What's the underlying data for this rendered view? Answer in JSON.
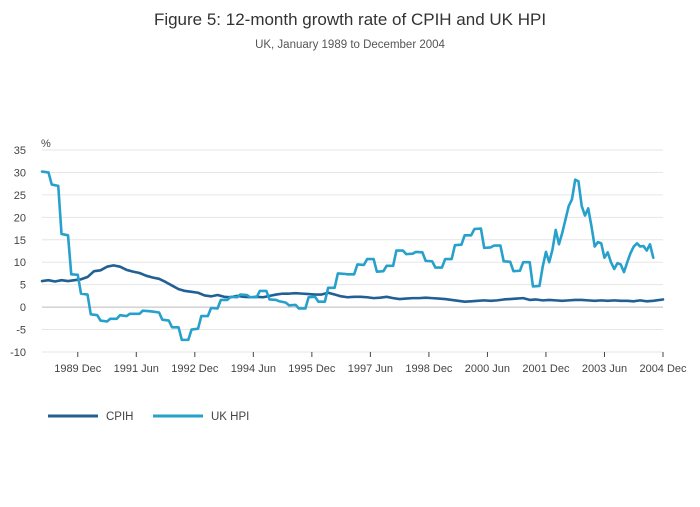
{
  "chart_data": {
    "type": "line",
    "title": "Figure 5: 12-month growth rate of CPIH and UK HPI",
    "subtitle": "UK, January 1989 to December 2004",
    "ylabel": "%",
    "xlabel": "",
    "ylim": [
      -10,
      35
    ],
    "yticks": [
      -10,
      -5,
      0,
      5,
      10,
      15,
      20,
      25,
      30,
      35
    ],
    "xlim": [
      "1989-01",
      "2004-12"
    ],
    "xticks": [
      {
        "date": "1989-12",
        "label": "1989 Dec"
      },
      {
        "date": "1991-06",
        "label": "1991 Jun"
      },
      {
        "date": "1992-12",
        "label": "1992 Dec"
      },
      {
        "date": "1994-06",
        "label": "1994 Jun"
      },
      {
        "date": "1995-12",
        "label": "1995 Dec"
      },
      {
        "date": "1997-06",
        "label": "1997 Jun"
      },
      {
        "date": "1998-12",
        "label": "1998 Dec"
      },
      {
        "date": "2000-06",
        "label": "2000 Jun"
      },
      {
        "date": "2001-12",
        "label": "2001 Dec"
      },
      {
        "date": "2003-06",
        "label": "2003 Jun"
      },
      {
        "date": "2004-12",
        "label": "2004 Dec"
      }
    ],
    "grid": true,
    "legend_position": "bottom-left",
    "series": [
      {
        "name": "CPIH",
        "color": "#206095",
        "points": [
          [
            "1989-01",
            5.8
          ],
          [
            "1989-03",
            6.0
          ],
          [
            "1989-05",
            5.7
          ],
          [
            "1989-07",
            6.0
          ],
          [
            "1989-09",
            5.8
          ],
          [
            "1989-11",
            6.0
          ],
          [
            "1990-01",
            6.2
          ],
          [
            "1990-03",
            6.7
          ],
          [
            "1990-05",
            8.0
          ],
          [
            "1990-07",
            8.2
          ],
          [
            "1990-09",
            9.0
          ],
          [
            "1990-11",
            9.3
          ],
          [
            "1991-01",
            9.0
          ],
          [
            "1991-03",
            8.3
          ],
          [
            "1991-05",
            7.9
          ],
          [
            "1991-07",
            7.6
          ],
          [
            "1991-09",
            7.0
          ],
          [
            "1991-11",
            6.6
          ],
          [
            "1992-01",
            6.3
          ],
          [
            "1992-03",
            5.6
          ],
          [
            "1992-05",
            4.8
          ],
          [
            "1992-07",
            4.0
          ],
          [
            "1992-09",
            3.6
          ],
          [
            "1992-11",
            3.4
          ],
          [
            "1993-01",
            3.2
          ],
          [
            "1993-03",
            2.6
          ],
          [
            "1993-05",
            2.4
          ],
          [
            "1993-07",
            2.7
          ],
          [
            "1993-09",
            2.3
          ],
          [
            "1993-11",
            2.2
          ],
          [
            "1994-01",
            2.5
          ],
          [
            "1994-03",
            2.3
          ],
          [
            "1994-05",
            2.2
          ],
          [
            "1994-07",
            2.3
          ],
          [
            "1994-09",
            2.2
          ],
          [
            "1994-11",
            2.5
          ],
          [
            "1995-01",
            2.8
          ],
          [
            "1995-03",
            3.0
          ],
          [
            "1995-05",
            3.0
          ],
          [
            "1995-07",
            3.1
          ],
          [
            "1995-09",
            3.0
          ],
          [
            "1995-11",
            2.9
          ],
          [
            "1996-01",
            2.8
          ],
          [
            "1996-03",
            2.8
          ],
          [
            "1996-05",
            3.2
          ],
          [
            "1996-07",
            2.8
          ],
          [
            "1996-09",
            2.4
          ],
          [
            "1996-11",
            2.2
          ],
          [
            "1997-01",
            2.3
          ],
          [
            "1997-03",
            2.3
          ],
          [
            "1997-05",
            2.2
          ],
          [
            "1997-07",
            2.0
          ],
          [
            "1997-09",
            2.1
          ],
          [
            "1997-11",
            2.3
          ],
          [
            "1998-01",
            2.0
          ],
          [
            "1998-03",
            1.8
          ],
          [
            "1998-05",
            1.9
          ],
          [
            "1998-07",
            2.0
          ],
          [
            "1998-09",
            2.0
          ],
          [
            "1998-11",
            2.1
          ],
          [
            "1999-01",
            2.0
          ],
          [
            "1999-03",
            1.9
          ],
          [
            "1999-05",
            1.8
          ],
          [
            "1999-07",
            1.6
          ],
          [
            "1999-09",
            1.4
          ],
          [
            "1999-11",
            1.2
          ],
          [
            "2000-01",
            1.3
          ],
          [
            "2000-03",
            1.4
          ],
          [
            "2000-05",
            1.5
          ],
          [
            "2000-07",
            1.4
          ],
          [
            "2000-09",
            1.5
          ],
          [
            "2000-11",
            1.7
          ],
          [
            "2001-01",
            1.8
          ],
          [
            "2001-03",
            1.9
          ],
          [
            "2001-05",
            2.0
          ],
          [
            "2001-07",
            1.6
          ],
          [
            "2001-09",
            1.7
          ],
          [
            "2001-11",
            1.5
          ],
          [
            "2002-01",
            1.6
          ],
          [
            "2002-03",
            1.5
          ],
          [
            "2002-05",
            1.4
          ],
          [
            "2002-07",
            1.5
          ],
          [
            "2002-09",
            1.6
          ],
          [
            "2002-11",
            1.6
          ],
          [
            "2003-01",
            1.5
          ],
          [
            "2003-03",
            1.4
          ],
          [
            "2003-05",
            1.5
          ],
          [
            "2003-07",
            1.4
          ],
          [
            "2003-09",
            1.5
          ],
          [
            "2003-11",
            1.4
          ],
          [
            "2004-01",
            1.4
          ],
          [
            "2004-03",
            1.3
          ],
          [
            "2004-05",
            1.5
          ],
          [
            "2004-07",
            1.3
          ],
          [
            "2004-09",
            1.4
          ],
          [
            "2004-12",
            1.7
          ]
        ]
      },
      {
        "name": "UK HPI",
        "color": "#27a0cc",
        "points": [
          [
            "1989-01",
            30.2
          ],
          [
            "1989-03",
            30.0
          ],
          [
            "1989-04",
            27.3
          ],
          [
            "1989-06",
            27.0
          ],
          [
            "1989-07",
            16.3
          ],
          [
            "1989-09",
            16.0
          ],
          [
            "1989-10",
            7.3
          ],
          [
            "1989-12",
            7.2
          ],
          [
            "1990-01",
            3.0
          ],
          [
            "1990-03",
            2.8
          ],
          [
            "1990-04",
            -1.6
          ],
          [
            "1990-06",
            -1.8
          ],
          [
            "1990-07",
            -3.0
          ],
          [
            "1990-09",
            -3.2
          ],
          [
            "1990-10",
            -2.6
          ],
          [
            "1990-12",
            -2.6
          ],
          [
            "1991-01",
            -1.8
          ],
          [
            "1991-03",
            -2.0
          ],
          [
            "1991-04",
            -1.5
          ],
          [
            "1991-07",
            -1.5
          ],
          [
            "1991-08",
            -0.8
          ],
          [
            "1991-10",
            -0.9
          ],
          [
            "1991-11",
            -1.0
          ],
          [
            "1992-01",
            -1.2
          ],
          [
            "1992-02",
            -2.8
          ],
          [
            "1992-04",
            -3.0
          ],
          [
            "1992-05",
            -4.5
          ],
          [
            "1992-07",
            -4.5
          ],
          [
            "1992-08",
            -7.3
          ],
          [
            "1992-10",
            -7.3
          ],
          [
            "1992-11",
            -5.0
          ],
          [
            "1993-01",
            -4.8
          ],
          [
            "1993-02",
            -2.0
          ],
          [
            "1993-04",
            -2.0
          ],
          [
            "1993-05",
            -0.2
          ],
          [
            "1993-07",
            -0.3
          ],
          [
            "1993-08",
            1.6
          ],
          [
            "1993-10",
            1.6
          ],
          [
            "1993-11",
            2.3
          ],
          [
            "1994-01",
            2.2
          ],
          [
            "1994-02",
            2.8
          ],
          [
            "1994-04",
            2.7
          ],
          [
            "1994-05",
            2.2
          ],
          [
            "1994-07",
            2.2
          ],
          [
            "1994-08",
            3.6
          ],
          [
            "1994-10",
            3.6
          ],
          [
            "1994-11",
            1.7
          ],
          [
            "1995-01",
            1.6
          ],
          [
            "1995-02",
            1.3
          ],
          [
            "1995-04",
            1.0
          ],
          [
            "1995-05",
            0.4
          ],
          [
            "1995-07",
            0.5
          ],
          [
            "1995-08",
            -0.3
          ],
          [
            "1995-10",
            -0.3
          ],
          [
            "1995-11",
            2.2
          ],
          [
            "1996-01",
            2.3
          ],
          [
            "1996-02",
            1.2
          ],
          [
            "1996-04",
            1.2
          ],
          [
            "1996-05",
            4.3
          ],
          [
            "1996-07",
            4.3
          ],
          [
            "1996-08",
            7.5
          ],
          [
            "1996-10",
            7.4
          ],
          [
            "1996-11",
            7.3
          ],
          [
            "1997-01",
            7.3
          ],
          [
            "1997-02",
            9.5
          ],
          [
            "1997-04",
            9.4
          ],
          [
            "1997-05",
            10.7
          ],
          [
            "1997-07",
            10.7
          ],
          [
            "1997-08",
            7.9
          ],
          [
            "1997-10",
            8.0
          ],
          [
            "1997-11",
            9.2
          ],
          [
            "1998-01",
            9.2
          ],
          [
            "1998-02",
            12.6
          ],
          [
            "1998-04",
            12.6
          ],
          [
            "1998-05",
            11.8
          ],
          [
            "1998-07",
            11.9
          ],
          [
            "1998-08",
            12.3
          ],
          [
            "1998-10",
            12.2
          ],
          [
            "1998-11",
            10.3
          ],
          [
            "1999-01",
            10.2
          ],
          [
            "1999-02",
            8.8
          ],
          [
            "1999-04",
            8.8
          ],
          [
            "1999-05",
            10.7
          ],
          [
            "1999-07",
            10.7
          ],
          [
            "1999-08",
            13.8
          ],
          [
            "1999-10",
            13.9
          ],
          [
            "1999-11",
            16.0
          ],
          [
            "2000-01",
            16.0
          ],
          [
            "2000-02",
            17.4
          ],
          [
            "2000-04",
            17.5
          ],
          [
            "2000-05",
            13.2
          ],
          [
            "2000-07",
            13.3
          ],
          [
            "2000-08",
            13.7
          ],
          [
            "2000-10",
            13.7
          ],
          [
            "2000-11",
            10.2
          ],
          [
            "2001-01",
            10.1
          ],
          [
            "2001-02",
            8.0
          ],
          [
            "2001-04",
            8.1
          ],
          [
            "2001-05",
            10.0
          ],
          [
            "2001-07",
            10.0
          ],
          [
            "2001-08",
            4.6
          ],
          [
            "2001-10",
            4.7
          ],
          [
            "2001-11",
            9.0
          ],
          [
            "2001-12",
            12.3
          ],
          [
            "2002-01",
            10.0
          ],
          [
            "2002-02",
            12.8
          ],
          [
            "2002-03",
            17.2
          ],
          [
            "2002-04",
            14.0
          ],
          [
            "2002-05",
            16.5
          ],
          [
            "2002-06",
            19.5
          ],
          [
            "2002-07",
            22.5
          ],
          [
            "2002-08",
            24.0
          ],
          [
            "2002-09",
            28.4
          ],
          [
            "2002-10",
            28.0
          ],
          [
            "2002-11",
            22.5
          ],
          [
            "2002-12",
            20.4
          ],
          [
            "2003-01",
            22.0
          ],
          [
            "2003-02",
            18.0
          ],
          [
            "2003-03",
            13.5
          ],
          [
            "2003-04",
            14.5
          ],
          [
            "2003-05",
            14.2
          ],
          [
            "2003-06",
            11.0
          ],
          [
            "2003-07",
            12.2
          ],
          [
            "2003-08",
            10.0
          ],
          [
            "2003-09",
            8.5
          ],
          [
            "2003-10",
            9.8
          ],
          [
            "2003-11",
            9.5
          ],
          [
            "2003-12",
            7.8
          ],
          [
            "2004-01",
            10.0
          ],
          [
            "2004-02",
            12.0
          ],
          [
            "2004-03",
            13.5
          ],
          [
            "2004-04",
            14.2
          ],
          [
            "2004-05",
            13.5
          ],
          [
            "2004-06",
            13.6
          ],
          [
            "2004-07",
            12.6
          ],
          [
            "2004-08",
            14.0
          ],
          [
            "2004-09",
            11.0
          ]
        ]
      }
    ]
  }
}
